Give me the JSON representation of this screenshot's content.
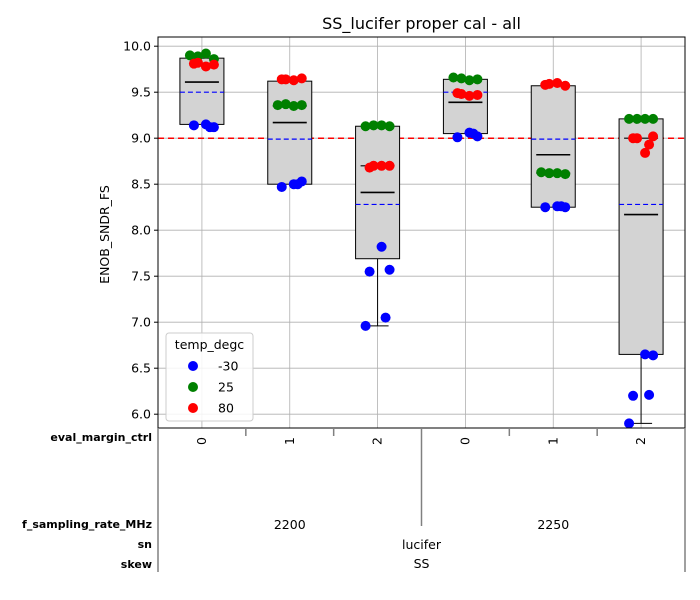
{
  "chart_data": {
    "type": "box-strip",
    "title": "SS_lucifer proper cal - all",
    "ylabel": "ENOB_SNDR_FS",
    "ylim": [
      5.85,
      10.1
    ],
    "yticks": [
      "6.0",
      "6.5",
      "7.0",
      "7.5",
      "8.0",
      "8.5",
      "9.0",
      "9.5",
      "10.0"
    ],
    "reference_line": 9.0,
    "reference_color": "#ff0000",
    "grid": true,
    "legend": {
      "title": "temp_degc",
      "placement": "lower-left",
      "entries": [
        {
          "label": "-30",
          "color": "#0000ff"
        },
        {
          "label": "25",
          "color": "#008000"
        },
        {
          "label": "80",
          "color": "#ff0000"
        }
      ]
    },
    "factors": [
      {
        "name": "eval_margin_ctrl",
        "levels": [
          "0",
          "1",
          "2",
          "0",
          "1",
          "2"
        ]
      },
      {
        "name": "f_sampling_rate_MHz",
        "levels": [
          "2200",
          "2250"
        ]
      },
      {
        "name": "sn",
        "levels": [
          "lucifer"
        ]
      },
      {
        "name": "skew",
        "levels": [
          "SS"
        ]
      }
    ],
    "groups": [
      {
        "box": {
          "q1": 9.15,
          "q3": 9.87,
          "median": 9.61,
          "mean": 9.5
        },
        "points": {
          "-30": [
            9.15,
            9.12,
            9.14,
            9.12
          ],
          "25": [
            9.9,
            9.89,
            9.92,
            9.86
          ],
          "80": [
            9.82,
            9.78,
            9.8,
            9.81
          ]
        }
      },
      {
        "box": {
          "q1": 8.5,
          "q3": 9.62,
          "median": 9.17,
          "mean": 8.99,
          "mid": 9.35
        },
        "points": {
          "-30": [
            8.5,
            8.53,
            8.47,
            8.5
          ],
          "25": [
            9.36,
            9.37,
            9.35,
            9.36
          ],
          "80": [
            9.64,
            9.63,
            9.65,
            9.64
          ]
        }
      },
      {
        "box": {
          "q1": 7.69,
          "q3": 9.13,
          "median": 8.41,
          "mean": 8.28,
          "mid": 8.7
        },
        "whisker": [
          6.96,
          9.13
        ],
        "points": {
          "-30": [
            7.82,
            7.57,
            7.55,
            7.05,
            6.96
          ],
          "25": [
            9.13,
            9.14,
            9.14,
            9.13
          ],
          "80": [
            8.7,
            8.7,
            8.7,
            8.68
          ]
        }
      },
      {
        "box": {
          "q1": 9.05,
          "q3": 9.64,
          "median": 9.39,
          "mean": 9.5
        },
        "points": {
          "-30": [
            9.06,
            9.02,
            9.01,
            9.05
          ],
          "25": [
            9.66,
            9.65,
            9.63,
            9.64
          ],
          "80": [
            9.48,
            9.46,
            9.47,
            9.49
          ]
        }
      },
      {
        "box": {
          "q1": 8.25,
          "q3": 9.57,
          "median": 8.82,
          "mean": 8.99,
          "mid": 8.62
        },
        "points": {
          "-30": [
            8.26,
            8.25,
            8.25,
            8.26
          ],
          "25": [
            8.63,
            8.62,
            8.62,
            8.61
          ],
          "80": [
            9.59,
            9.6,
            9.57,
            9.58
          ]
        }
      },
      {
        "box": {
          "q1": 6.65,
          "q3": 9.21,
          "median": 8.17,
          "mean": 8.28,
          "mid": 9.0
        },
        "whisker": [
          5.9,
          9.21
        ],
        "points": {
          "-30": [
            6.65,
            6.64,
            6.2,
            6.21,
            5.9
          ],
          "25": [
            9.21,
            9.21,
            9.21,
            9.21
          ],
          "80": [
            9.0,
            8.84,
            9.02,
            9.0,
            8.93
          ]
        }
      }
    ]
  }
}
